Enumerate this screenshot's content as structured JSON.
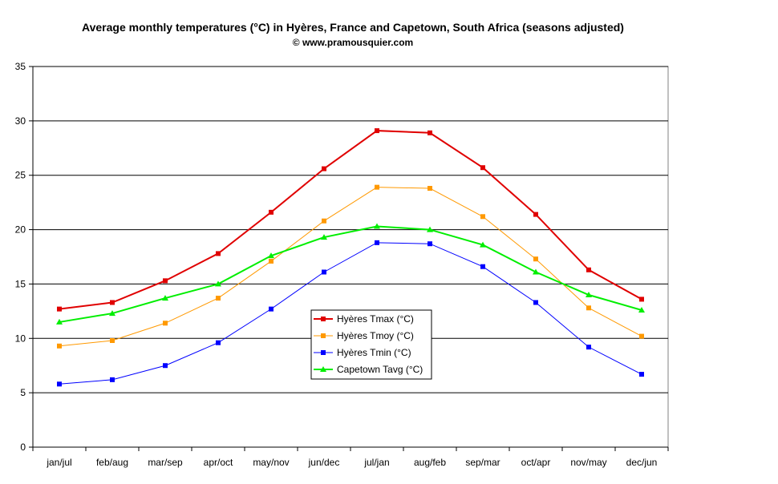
{
  "chart_data": {
    "type": "line",
    "title": "Average monthly temperatures (°C) in Hyères, France and Capetown, South Africa (seasons adjusted)",
    "subtitle": "© www.pramousquier.com",
    "categories": [
      "jan/jul",
      "feb/aug",
      "mar/sep",
      "apr/oct",
      "may/nov",
      "jun/dec",
      "jul/jan",
      "aug/feb",
      "sep/mar",
      "oct/apr",
      "nov/may",
      "dec/jun"
    ],
    "ylim": [
      0,
      35
    ],
    "yticks": [
      0,
      5,
      10,
      15,
      20,
      25,
      30,
      35
    ],
    "grid": true,
    "legend_position": "center-bottom",
    "series": [
      {
        "name": "Hyères Tmax (°C)",
        "color": "#e00000",
        "marker": "square",
        "values": [
          12.7,
          13.3,
          15.3,
          17.8,
          21.6,
          25.6,
          29.1,
          28.9,
          25.7,
          21.4,
          16.3,
          13.6
        ]
      },
      {
        "name": "Hyères Tmoy (°C)",
        "color": "#ff9900",
        "marker": "square",
        "values": [
          9.3,
          9.8,
          11.4,
          13.7,
          17.1,
          20.8,
          23.9,
          23.8,
          21.2,
          17.3,
          12.8,
          10.2
        ]
      },
      {
        "name": "Hyères Tmin (°C)",
        "color": "#0000ff",
        "marker": "square",
        "values": [
          5.8,
          6.2,
          7.5,
          9.6,
          12.7,
          16.1,
          18.8,
          18.7,
          16.6,
          13.3,
          9.2,
          6.7
        ]
      },
      {
        "name": "Capetown Tavg (°C)",
        "color": "#00ee00",
        "marker": "triangle",
        "values": [
          11.5,
          12.3,
          13.7,
          15.0,
          17.6,
          19.3,
          20.3,
          20.0,
          18.6,
          16.1,
          14.0,
          12.6
        ]
      }
    ]
  }
}
